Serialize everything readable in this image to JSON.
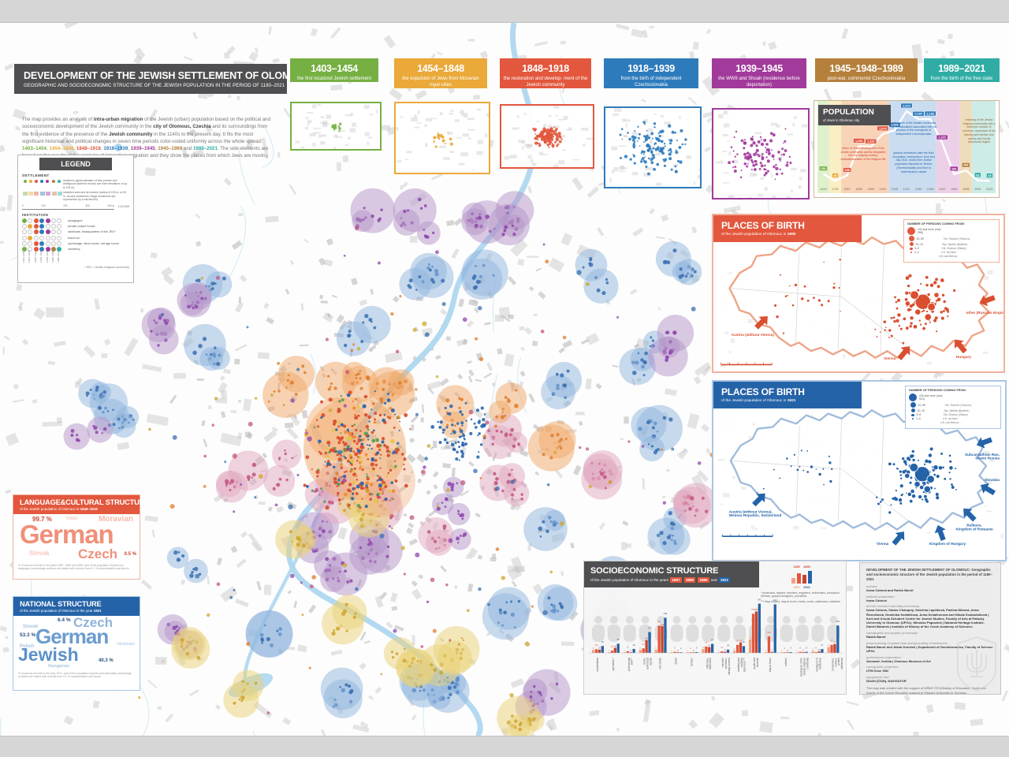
{
  "poster": {
    "title": "DEVELOPMENT OF THE JEWISH SETTLEMENT OF OLOMOUC",
    "subtitle": "GEOGRAPHIC AND SOCIOECONOMIC STRUCTURE OF THE JEWISH POPULATION IN THE PERIOD OF 1180–2021"
  },
  "period_colors": [
    "#76b043",
    "#eaa939",
    "#e2573d",
    "#2e7bbc",
    "#a13a9b",
    "#b5803c",
    "#2fada4"
  ],
  "intro_segments": [
    {
      "t": "The map provides an analysis of "
    },
    {
      "t": "intra-urban migration",
      "b": true
    },
    {
      "t": " of the Jewish (urban) population based on the political and socioeconomic development of the Jewish community in the "
    },
    {
      "t": "city of Olomouc, Czechia",
      "b": true
    },
    {
      "t": " and its surroundings from the first evidence of the presence of the "
    },
    {
      "t": "Jewish community",
      "b": true
    },
    {
      "t": " in the 1140s to the present day. It fits the most significant historical and political changes in seven time periods color-coded uniformly across the whole spread: "
    },
    {
      "t": "1403–1454",
      "c": 0
    },
    {
      "t": ", "
    },
    {
      "t": "1454–1848",
      "c": 1
    },
    {
      "t": ", "
    },
    {
      "t": "1848–1918",
      "c": 2
    },
    {
      "t": ", "
    },
    {
      "t": "1918–1939",
      "c": 3
    },
    {
      "t": ", "
    },
    {
      "t": "1939–1945",
      "c": 4
    },
    {
      "t": ", "
    },
    {
      "t": "1945–1989",
      "c": 5
    },
    {
      "t": " and "
    },
    {
      "t": "1989–2021",
      "c": 6
    },
    {
      "t": ". The side elements are based on the results of the analysis of interurban migration and they show the places from which Jews are moving to Olomouc in the monitored periods."
    }
  ],
  "timeline": [
    {
      "years": "1403–1454",
      "desc": "the first localized Jewish settlement",
      "color": "#76b043"
    },
    {
      "years": "1454–1848",
      "desc": "the expulsion of Jews from Moravian royal cities",
      "color": "#eaa939"
    },
    {
      "years": "1848–1918",
      "desc": "the restoration and develop- ment of the Jewish community",
      "color": "#e2573d"
    },
    {
      "years": "1918–1939",
      "desc": "from the birth of independent Czechoslovakia",
      "color": "#2e7bbc"
    },
    {
      "years": "1939–1945",
      "desc": "the WWII and Shoah (residence before deportation)",
      "color": "#a13a9b"
    },
    {
      "years": "1945–1948–1989",
      "desc": "post-war, communist Czechoslovakia",
      "color": "#b5803c"
    },
    {
      "years": "1989–2021",
      "desc": "from the birth of the free state",
      "color": "#2fada4"
    }
  ],
  "legend": {
    "title": "LEGEND",
    "settlement_label": "SETTLEMENT",
    "settlement_items": [
      "residence (geolocalization of less precise and ambiguous address records can have deviations of up to 100 m)",
      "inhabited area and its borders (radius of 100 m, or 50 m, around residences; illegal residences are represented by a hatched fill)"
    ],
    "scale_ticks": [
      "0",
      "100",
      "200",
      "300",
      "400 m"
    ],
    "scale_text": "1:10,000",
    "institution_label": "INSTITUTION",
    "institution_items": [
      "synagogue",
      "private prayer house",
      "rabbinate, headquarters of the JRC*",
      "travel inn",
      "orphanage, alms house, old age home",
      "cemetery"
    ],
    "periods": [
      "1403–1454",
      "1454–1848",
      "1848–1918",
      "1918–1939",
      "1939–1945",
      "1945–1989",
      "1989–2021"
    ],
    "footnote": "* JRC = Jewish religious community"
  },
  "population_notes": {
    "orange": "return of Jews, development of the Jewish community and its integration into the majority society, institutionalization of the religious life",
    "blue1": "conjunction of the Jewish community, rise of nationalism associated with the process of the emergence of independent Czechoslovakia",
    "blue2": "gradual restrictions after the Nazi occupation, transports in June and July 1942, most of the Jewish population deported to Terezín (Theresienstadt) and then to extermination camps",
    "tan": "restoring of the Jewish religious community with a minimum number of survivors, repression of the latently anti-Semitic and openly anti-Zionist communist regime"
  },
  "places_1890": {
    "title": "PLACES OF BIRTH",
    "subtitle": "of the Jewish population of Olomouc in",
    "year": "1890",
    "legend_title": "NUMBER OF PERSONS COMING FROM:",
    "legend_sizes": [
      "100 and more (max. 258)",
      "20–99",
      "10–19",
      "5–9",
      "1–4"
    ],
    "abbreviations": [
      "Těš.  Teschen (Těšín/cz)",
      "Bys.  Bystritz (Bystřice)",
      "Olš.  Olschan (Olšany)",
      "n.H.  na Hané",
      "n.B.  nad Bečvou"
    ],
    "arrow_labels": [
      "Galicia",
      "other (Russian Empire)",
      "Hungary",
      "Vienna",
      "Austria (without Vienna)"
    ]
  },
  "places_1921": {
    "title": "PLACES OF BIRTH",
    "subtitle": "of the Jewish population of Olomouc in",
    "year": "1921",
    "legend_title": "NUMBER OF PERSONS COMING FROM:",
    "legend_sizes": [
      "100 and more (max. 913)",
      "20–99",
      "10–19",
      "5–9",
      "1–4"
    ],
    "abbreviations": [
      "Těš.  Teschen (Těšín/cz)",
      "Bys.  Bystritz (Bystřice)",
      "Olš.  Olschan (Olšany)",
      "n.H.  na Hané",
      "n.B.  nad Bečvou"
    ],
    "arrow_labels": [
      "Poland",
      "Subcarpathian Rus,\nSoviet Russia",
      "Slovakia",
      "Balkans,\nKingdom of Romania",
      "Kingdom of Hungary",
      "Vienna",
      "Austria (without Vienna),\nWeimar Republic, Switzerland"
    ]
  },
  "language": {
    "title": "LANGUAGE&CULTURAL STRUCTURE",
    "subtitle": "of the Jewish population of Olomouc in",
    "year": "1848–1918",
    "pct_german": "99.7 %",
    "word_german": "German",
    "word_moravian": "Moravian",
    "word_yiddish": "Yiddish",
    "word_czech": "Czech",
    "pct_czech": "0.5 %",
    "word_slovak": "Slovak",
    "footnote": "% of census records in the years 1857, 1880 and 1890; part of the population reports two languages; percentage numbers are stated with records from 0.1 % representation and above"
  },
  "national": {
    "title": "NATIONAL STRUCTURE",
    "subtitle": "of the Jewish population of Olomouc in the year",
    "year": "1921",
    "word_czech": "Czech",
    "pct_czech": "6.4 %",
    "word_slovak": "Slovak",
    "pct_german": "53.3 %",
    "word_german": "German",
    "word_polish": "Polish",
    "word_ukrainian": "Ukrainian",
    "word_jewish": "Jewish",
    "pct_jewish": "40.3 %",
    "word_hungarian": "Hungarian",
    "footnote": "% of census records in the year 1921; part of the population reports dual nationality; percentage numbers are stated with records from 0.1 % representation and above"
  },
  "socio": {
    "subtitle_prefix": "of the Jewish population of Olomouc in the years",
    "and_word": "and",
    "footnote1": "*  physicians, lawyers, teachers, engineers, technicians, production foremen, graphic designers, journalists",
    "footnote2": "*** shop helpers, stay at home, maids, cooks, waitresses, midwives"
  },
  "credits": {
    "heading": "DEVELOPMENT OF THE JEWISH SETTLEMENT OF OLOMOUC: Geographic and socioeconomic structure of the Jewish population in the period of 1180–2021",
    "rows": [
      {
        "label": "authors:",
        "text": "Ivana Cahová and Radek Barvíř"
      },
      {
        "label": "editorial preparation:",
        "text": "Ivana Cahová"
      },
      {
        "label": "archive research and data processing:",
        "text": "Ivana Cahová, Václav Chalupný, Kateřina Lapčíková, Pavlína Niklová, Anna Řezníčková, Dominika Sedláčková, Anna Schallnerová and Nikola Svobodníková | Kurt and Ursula Schubert Center for Jewish Studies, Faculty of Arts at Palacký University in Olomouc (UPOL), Miroslav Papoušek | National Heritage Institute, Daniel Baránek | Institute of History of the Czech Academy of Sciences"
      },
      {
        "label": "cartographic and graphic processing:",
        "text": "Radek Barvíř"
      },
      {
        "label": "preprocessing of spatial data and geocoding of addresses:",
        "text": "Radek Barvíř and Jakub Koníček | Department of Geoinformatics, Faculty of Science UPOL"
      },
      {
        "label": "professional cooperation:",
        "text": "Alexandr Jeništa | Olomouc Museum of Art"
      },
      {
        "label": "cartographic projection:",
        "text": "UTM Zone 33N"
      },
      {
        "label": "typographic font:",
        "text": "NOAH (ČS/N), NAVIGATOR"
      }
    ],
    "support": "The map was created with the support of MŠMT ČR (Ministry of Education, Youth and Sports of the Czech Republic) granted to Palacký University in Olomouc (IGA_FF_2021_026)."
  },
  "chart_data": [
    {
      "type": "line",
      "title": "POPULATION",
      "subtitle": "of Jews in Olomouc-city",
      "x": [
        "1403",
        "1792",
        "1857",
        "1869",
        "1890",
        "1910",
        "1918",
        "1921",
        "1930",
        "1938",
        "1942",
        "1945",
        "1956",
        "1991",
        "2021"
      ],
      "values": [
        290,
        46,
        238,
        1254,
        1233,
        1679,
        1806,
        2473,
        2190,
        2198,
        1372,
        280,
        408,
        63,
        43
      ],
      "value_labels": [
        "290",
        "46",
        "238",
        "1,254",
        "1,233",
        "1,679",
        "1,806",
        "2,473",
        "2,190",
        "2,198",
        "1,372",
        "280",
        "408",
        "63",
        "43"
      ],
      "point_period": [
        0,
        1,
        2,
        2,
        2,
        2,
        3,
        3,
        3,
        3,
        4,
        4,
        5,
        6,
        6
      ],
      "band_spans": [
        [
          0,
          1
        ],
        [
          1,
          2
        ],
        [
          2,
          6
        ],
        [
          6,
          10
        ],
        [
          10,
          12
        ],
        [
          12,
          13
        ],
        [
          13,
          15
        ]
      ],
      "band_colors_light": [
        "#dff0cd",
        "#faeec4",
        "#f9d3b8",
        "#c9dcf0",
        "#ecd0e7",
        "#eedcbc",
        "#cdebe7"
      ],
      "ylim": [
        0,
        2500
      ],
      "legend_position": "none",
      "grid": false
    },
    {
      "type": "bar",
      "title": "SOCIOECONOMIC STRUCTURE",
      "categories": [
        "industrialists",
        "specialists *",
        "professional staff **",
        "clerks, authorized agents",
        "merchants",
        "artists",
        "farmers",
        "craftsmen, tradesmen",
        "machine operators, railway workers",
        "auxiliary and unskilled labourers ***",
        "pupils and students",
        "stay at home",
        "soldiers",
        "employees of the Jewish religious community",
        "managers of institutions",
        "pensioners, rentiers, private individuals"
      ],
      "series": [
        {
          "name": "1857",
          "color": "#f2a085",
          "values": [
            20,
            5,
            3,
            21,
            23,
            2,
            1,
            28,
            1,
            16,
            94,
            5,
            3,
            2,
            13,
            41
          ]
        },
        {
          "name": "1880",
          "color": "#e2573d",
          "values": [
            26,
            16,
            12,
            32,
            191,
            8,
            2,
            45,
            11,
            57,
            276,
            116,
            3,
            8,
            6,
            57
          ]
        },
        {
          "name": "1890",
          "color": "#c64530",
          "values": [
            23,
            36,
            5,
            90,
            189,
            5,
            4,
            41,
            8,
            74,
            292,
            7,
            5,
            6,
            11,
            62
          ]
        },
        {
          "name": "1921",
          "color": "#2563a8",
          "values": [
            49,
            65,
            28,
            147,
            248,
            2,
            6,
            64,
            23,
            48,
            347,
            342,
            6,
            8,
            27,
            193
          ]
        }
      ],
      "ylim": [
        0,
        350
      ],
      "grid": false
    }
  ]
}
